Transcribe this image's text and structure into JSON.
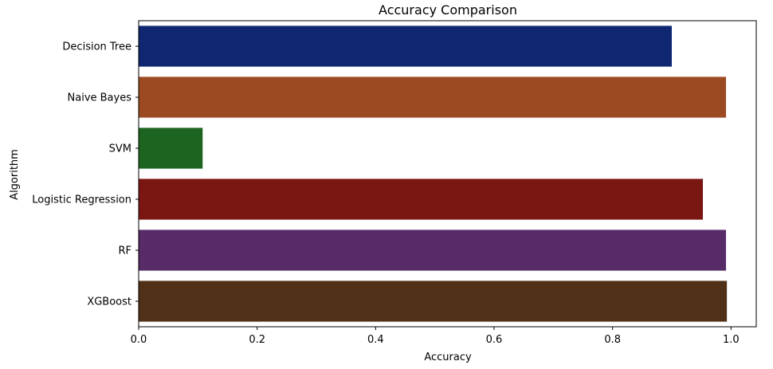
{
  "chart_data": {
    "type": "bar",
    "orientation": "horizontal",
    "title": "Accuracy Comparison",
    "xlabel": "Accuracy",
    "ylabel": "Algorithm",
    "categories": [
      "Decision Tree",
      "Naive Bayes",
      "SVM",
      "Logistic Regression",
      "RF",
      "XGBoost"
    ],
    "values": [
      0.9,
      0.9915,
      0.108,
      0.9525,
      0.9915,
      0.993
    ],
    "colors": [
      "#0f2771",
      "#9c4a22",
      "#1d6420",
      "#7a1713",
      "#572a68",
      "#503017"
    ],
    "xlim": [
      0,
      1.0426
    ],
    "xticks": [
      "0.0",
      "0.2",
      "0.4",
      "0.6",
      "0.8",
      "1.0"
    ],
    "grid": false
  }
}
